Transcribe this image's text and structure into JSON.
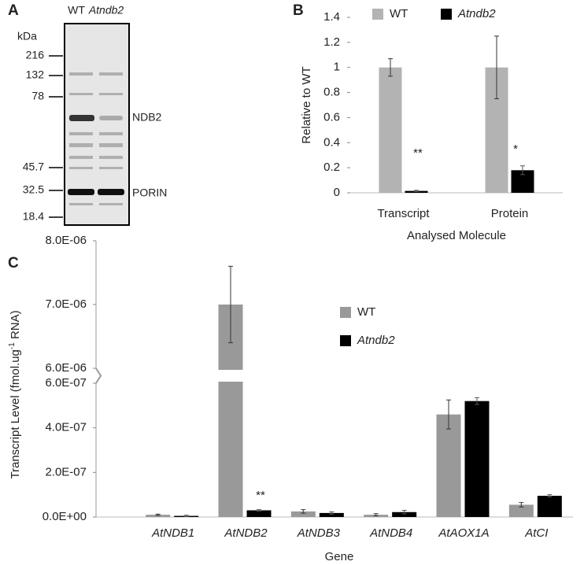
{
  "blot": {
    "panel_label": "A",
    "lanes": [
      "WT",
      "Atndb2"
    ],
    "unit": "kDa",
    "markers": [
      "216",
      "132",
      "78",
      "45.7",
      "32.5",
      "18.4"
    ],
    "bands": [
      "NDB2",
      "PORIN"
    ]
  },
  "chart_data": [
    {
      "type": "bar",
      "panel_label": "B",
      "xlabel": "Analysed Molecule",
      "ylabel": "Relative to WT",
      "categories": [
        "Transcript",
        "Protein"
      ],
      "series": [
        {
          "name": "WT",
          "color": "#b3b3b3",
          "values": [
            1,
            1
          ],
          "errors": [
            0.07,
            0.25
          ]
        },
        {
          "name": "Atndb2",
          "color": "#000000",
          "values": [
            0.015,
            0.18
          ],
          "errors": [
            0.005,
            0.035
          ]
        }
      ],
      "ylim": [
        0,
        1.4
      ],
      "yticks": [
        0,
        0.2,
        0.4,
        0.6,
        0.8,
        1,
        1.2,
        1.4
      ],
      "annotations": [
        "**",
        "*"
      ],
      "grid": false
    },
    {
      "type": "bar",
      "panel_label": "C",
      "xlabel": "Gene",
      "ylabel": {
        "text": "Transcript Level (fmol.ug",
        "superscript": "-1",
        "suffix": " RNA)"
      },
      "categories": [
        "AtNDB1",
        "AtNDB2",
        "AtNDB3",
        "AtNDB4",
        "AtAOX1A",
        "AtCI"
      ],
      "series": [
        {
          "name": "WT",
          "color": "#999999",
          "values": [
            1e-08,
            7e-06,
            2.5e-08,
            1e-08,
            4.6e-07,
            5.5e-08
          ],
          "errors": [
            3e-09,
            6e-07,
            8e-09,
            5e-09,
            6.5e-08,
            1e-08
          ]
        },
        {
          "name": "Atndb2",
          "color": "#000000",
          "values": [
            5e-09,
            3e-08,
            1.8e-08,
            2.2e-08,
            5.2e-07,
            9.5e-08
          ],
          "errors": [
            3e-09,
            3e-09,
            5e-09,
            8e-09,
            1.5e-08,
            5e-09
          ]
        }
      ],
      "ylim": [
        0,
        8e-06
      ],
      "axis_break": [
        6e-07,
        6e-06
      ],
      "yticks": [
        {
          "value": 0,
          "label": "0.0E+00"
        },
        {
          "value": 2e-07,
          "label": "2.0E-07"
        },
        {
          "value": 4e-07,
          "label": "4.0E-07"
        },
        {
          "value": 6e-07,
          "label": "6.0E-07"
        },
        {
          "value": 6e-06,
          "label": "6.0E-06"
        },
        {
          "value": 7e-06,
          "label": "7.0E-06"
        },
        {
          "value": 8e-06,
          "label": "8.0E-06"
        }
      ],
      "annotations": [
        "**"
      ],
      "grid": false
    }
  ]
}
